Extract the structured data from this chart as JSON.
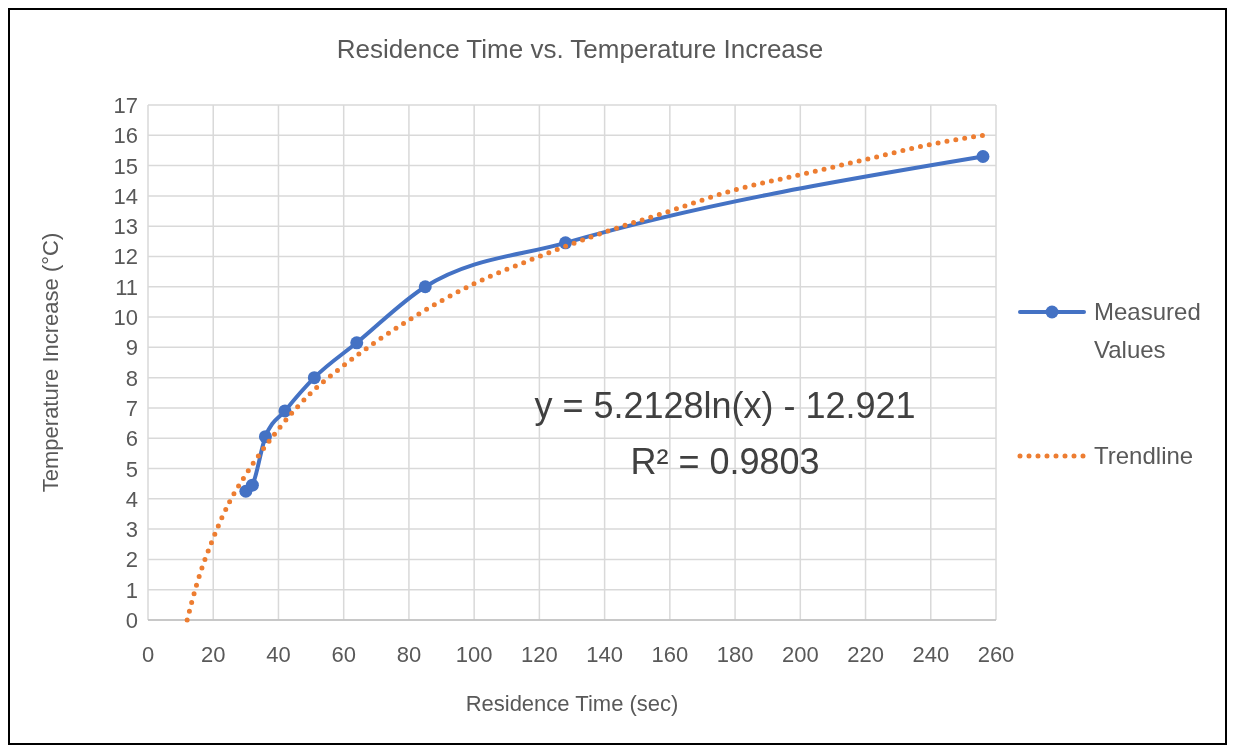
{
  "chart_data": {
    "type": "line",
    "title": "Residence Time vs. Temperature Increase",
    "xlabel": "Residence Time (sec)",
    "ylabel": "Temperature Increase (°C)",
    "xlim": [
      0,
      260
    ],
    "xticks": [
      0,
      20,
      40,
      60,
      80,
      100,
      120,
      140,
      160,
      180,
      200,
      220,
      240,
      260
    ],
    "ylim": [
      0,
      17
    ],
    "yticks": [
      0,
      1,
      2,
      3,
      4,
      5,
      6,
      7,
      8,
      9,
      10,
      11,
      12,
      13,
      14,
      15,
      16,
      17
    ],
    "grid": true,
    "legend": "right",
    "annotations": [
      "y = 5.2128ln(x) - 12.921",
      "R² = 0.9803"
    ],
    "series": [
      {
        "name": "Measured Values",
        "color": "#4472c4",
        "marker": "circle",
        "line_style": "solid",
        "x": [
          30,
          32,
          36,
          42,
          51,
          64,
          85,
          128,
          256
        ],
        "values": [
          4.25,
          4.45,
          6.05,
          6.9,
          8.0,
          9.15,
          11.0,
          12.45,
          15.3
        ]
      },
      {
        "name": "Trendline",
        "color": "#ed7d31",
        "marker": "none",
        "line_style": "dotted",
        "x": [
          12,
          15,
          20,
          25,
          30,
          40,
          50,
          60,
          80,
          100,
          120,
          140,
          160,
          180,
          200,
          220,
          240,
          256
        ],
        "values": [
          0.0,
          1.2,
          2.7,
          3.9,
          4.8,
          6.3,
          7.5,
          8.4,
          9.9,
          11.1,
          12.0,
          12.8,
          13.5,
          14.2,
          14.7,
          15.2,
          15.7,
          16.0
        ]
      }
    ]
  }
}
